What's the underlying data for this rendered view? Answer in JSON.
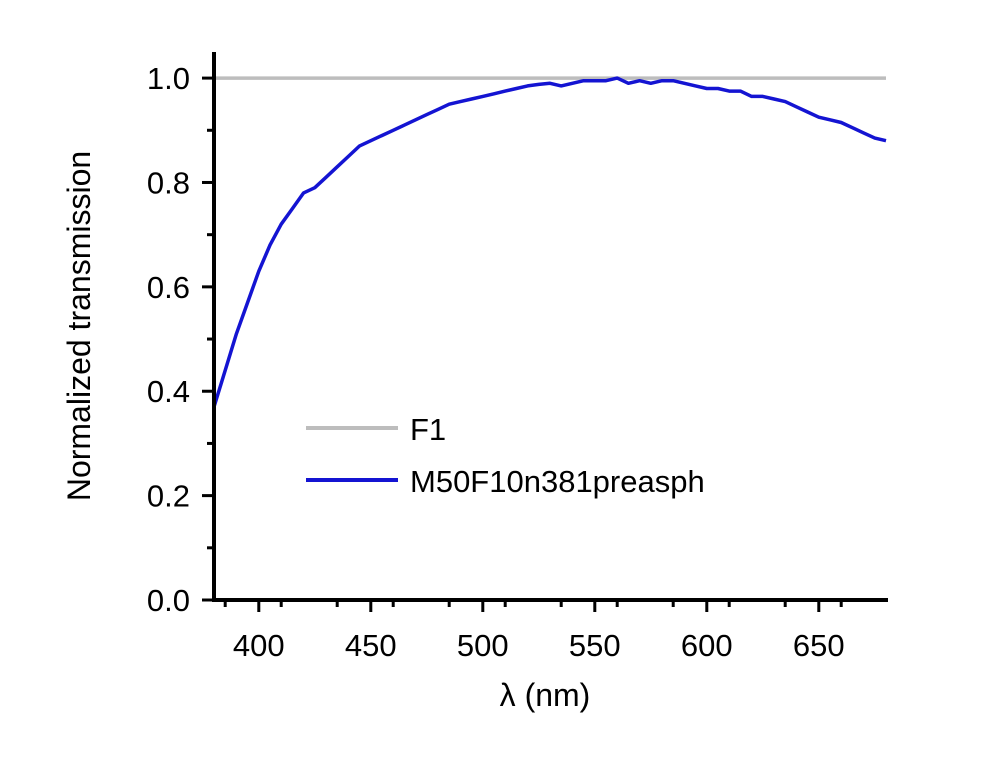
{
  "chart_data": {
    "type": "line",
    "xlabel": "λ (nm)",
    "ylabel": "Normalized transmission",
    "xlim": [
      380,
      680
    ],
    "ylim": [
      0.0,
      1.05
    ],
    "x_ticks": [
      400,
      450,
      500,
      550,
      600,
      650
    ],
    "x_tick_labels": [
      "400",
      "450",
      "500",
      "550",
      "600",
      "650"
    ],
    "y_ticks": [
      0.0,
      0.2,
      0.4,
      0.6,
      0.8,
      1.0
    ],
    "y_tick_labels": [
      "0.0",
      "0.2",
      "0.4",
      "0.6",
      "0.8",
      "1.0"
    ],
    "grid": false,
    "legend_position": "lower-center",
    "series": [
      {
        "name": "F1",
        "color": "#bdbdbd",
        "x": [
          380,
          680
        ],
        "y": [
          1.0,
          1.0
        ]
      },
      {
        "name": "M50F10n381preasph",
        "color": "#1414d2",
        "x": [
          380,
          385,
          390,
          395,
          400,
          405,
          410,
          415,
          420,
          425,
          430,
          435,
          440,
          445,
          450,
          455,
          460,
          465,
          470,
          475,
          480,
          485,
          490,
          495,
          500,
          505,
          510,
          515,
          520,
          525,
          530,
          535,
          540,
          545,
          550,
          555,
          560,
          565,
          570,
          575,
          580,
          585,
          590,
          595,
          600,
          605,
          610,
          615,
          620,
          625,
          630,
          635,
          640,
          645,
          650,
          655,
          660,
          665,
          670,
          675,
          680
        ],
        "y": [
          0.37,
          0.44,
          0.51,
          0.57,
          0.63,
          0.68,
          0.72,
          0.75,
          0.78,
          0.79,
          0.81,
          0.83,
          0.85,
          0.87,
          0.88,
          0.89,
          0.9,
          0.91,
          0.92,
          0.93,
          0.94,
          0.95,
          0.955,
          0.96,
          0.965,
          0.97,
          0.975,
          0.98,
          0.985,
          0.988,
          0.99,
          0.985,
          0.99,
          0.995,
          0.995,
          0.995,
          1.0,
          0.99,
          0.995,
          0.99,
          0.995,
          0.995,
          0.99,
          0.985,
          0.98,
          0.98,
          0.975,
          0.975,
          0.965,
          0.965,
          0.96,
          0.955,
          0.945,
          0.935,
          0.925,
          0.92,
          0.915,
          0.905,
          0.895,
          0.885,
          0.88
        ]
      }
    ]
  }
}
